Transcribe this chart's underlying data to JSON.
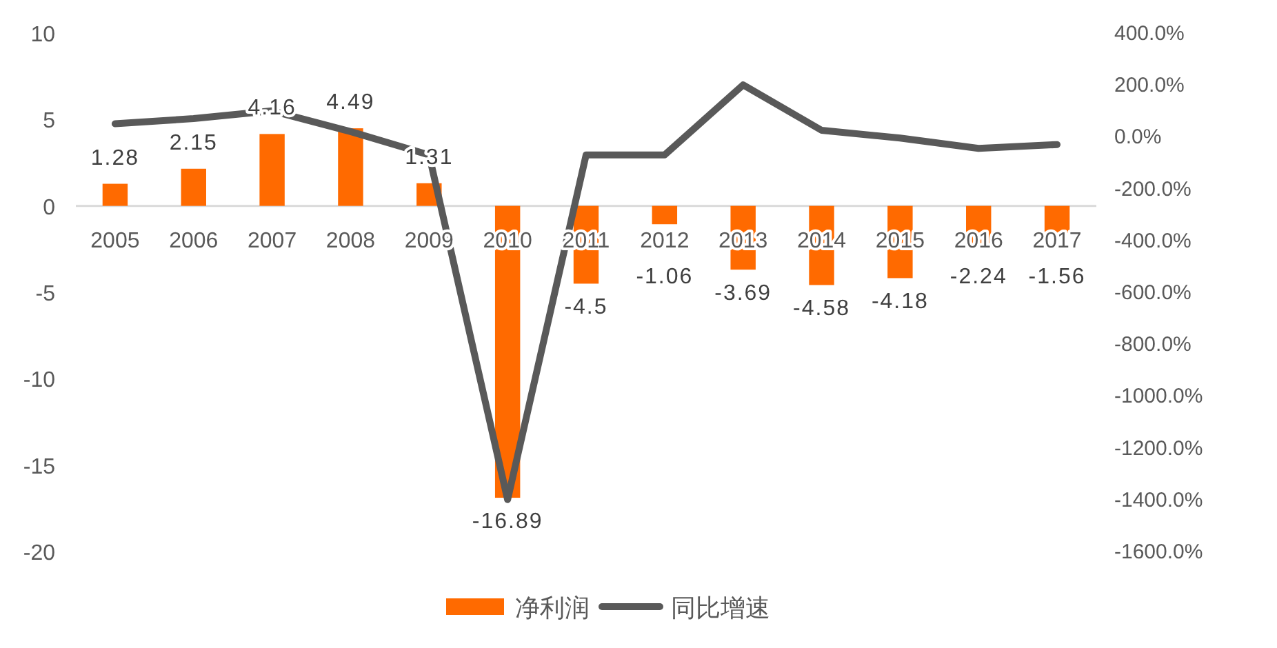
{
  "chart_data": {
    "type": "bar",
    "categories": [
      "2005",
      "2006",
      "2007",
      "2008",
      "2009",
      "2010",
      "2011",
      "2012",
      "2013",
      "2014",
      "2015",
      "2016",
      "2017"
    ],
    "series": [
      {
        "name": "净利润",
        "color": "#ff6a00",
        "values": [
          1.28,
          2.15,
          4.16,
          4.49,
          1.31,
          -16.89,
          -4.5,
          -1.06,
          -3.69,
          -4.58,
          -4.18,
          -2.24,
          -1.56
        ],
        "value_labels": [
          "1.28",
          "2.15",
          "4.16",
          "4.49",
          "1.31",
          "-16.89",
          "-4.5",
          "-1.06",
          "-3.69",
          "-4.58",
          "-4.18",
          "-2.24",
          "-1.56"
        ]
      },
      {
        "name": "同比增速",
        "type": "line",
        "axis": "y2",
        "color": "#595959",
        "values": [
          50,
          70,
          100,
          20,
          -70,
          -1400,
          -70,
          -70,
          200,
          25,
          -5,
          -45,
          -30
        ]
      }
    ],
    "ylim": [
      -20,
      10
    ],
    "yticks": [
      -20,
      -15,
      -10,
      -5,
      0,
      5,
      10
    ],
    "y2lim": [
      -1600,
      400
    ],
    "y2ticks": [
      {
        "value": -1600,
        "label": "-1600.0%"
      },
      {
        "value": -1400,
        "label": "-1400.0%"
      },
      {
        "value": -1200,
        "label": "-1200.0%"
      },
      {
        "value": -1000,
        "label": "-1000.0%"
      },
      {
        "value": -800,
        "label": "-800.0%"
      },
      {
        "value": -600,
        "label": "-600.0%"
      },
      {
        "value": -400,
        "label": "-400.0%"
      },
      {
        "value": -200,
        "label": "-200.0%"
      },
      {
        "value": 0,
        "label": "0.0%"
      },
      {
        "value": 200,
        "label": "200.0%"
      },
      {
        "value": 400,
        "label": "400.0%"
      }
    ],
    "legend": "bottom"
  }
}
